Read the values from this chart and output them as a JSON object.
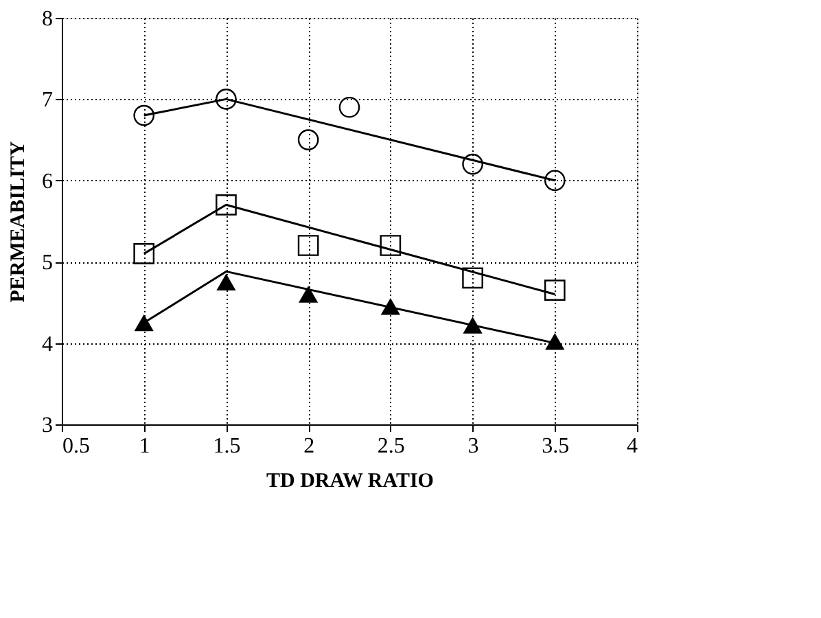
{
  "chart_data": {
    "type": "scatter",
    "xlabel": "TD DRAW RATIO",
    "ylabel": "PERMEABILITY",
    "xlim": [
      0.5,
      4
    ],
    "ylim": [
      3,
      8
    ],
    "xticks": [
      0.5,
      1,
      1.5,
      2,
      2.5,
      3,
      3.5,
      4
    ],
    "yticks": [
      3,
      4,
      5,
      6,
      7,
      8
    ],
    "grid": true,
    "series": [
      {
        "marker": "circle",
        "color": "#000000",
        "x": [
          1,
          1.5,
          2,
          2.25,
          3,
          3.5
        ],
        "values": [
          6.8,
          7.0,
          6.5,
          6.9,
          6.2,
          6.0
        ]
      },
      {
        "marker": "square",
        "color": "#000000",
        "x": [
          1,
          1.5,
          2,
          2.5,
          3,
          3.5
        ],
        "values": [
          5.1,
          5.7,
          5.2,
          5.2,
          4.8,
          4.65
        ]
      },
      {
        "marker": "triangle",
        "color": "#000000",
        "x": [
          1,
          1.5,
          2,
          2.5,
          3,
          3.5
        ],
        "values": [
          4.25,
          4.75,
          4.6,
          4.45,
          4.22,
          4.02
        ]
      },
      {
        "type": "line",
        "line_style": "solid",
        "color": "#000000",
        "x": [
          1,
          1.5,
          3.5
        ],
        "values": [
          6.8,
          7.0,
          6.0
        ]
      },
      {
        "type": "line",
        "line_style": "solid",
        "color": "#000000",
        "x": [
          1,
          1.5,
          3.5
        ],
        "values": [
          5.1,
          5.7,
          4.6
        ]
      },
      {
        "type": "line",
        "line_style": "solid",
        "color": "#000000",
        "x": [
          1,
          1.5,
          3.5
        ],
        "values": [
          4.25,
          4.88,
          4.0
        ]
      }
    ]
  }
}
